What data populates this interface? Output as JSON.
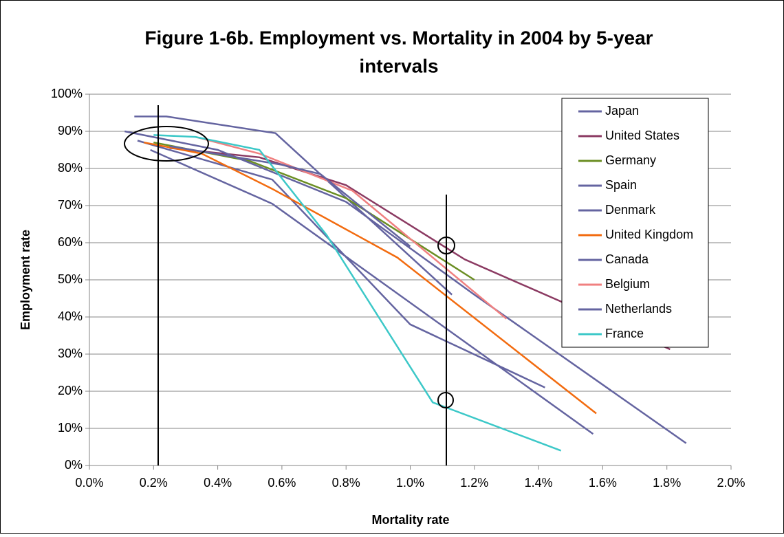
{
  "chart_data": {
    "type": "line",
    "title": [
      "Figure 1-6b. Employment vs. Mortality in 2004 by 5-year",
      "intervals"
    ],
    "x_label": "Mortality rate",
    "y_label": "Employment rate",
    "xlim": [
      0,
      2
    ],
    "ylim": [
      0,
      100
    ],
    "grid": true,
    "legend": "upper-right",
    "xticks": [
      {
        "value": 0,
        "label": "0.0%"
      },
      {
        "value": 0.2,
        "label": "0.2%"
      },
      {
        "value": 0.4,
        "label": "0.4%"
      },
      {
        "value": 0.6,
        "label": "0.6%"
      },
      {
        "value": 0.8,
        "label": "0.8%"
      },
      {
        "value": 1,
        "label": "1.0%"
      },
      {
        "value": 1.2,
        "label": "1.2%"
      },
      {
        "value": 1.4,
        "label": "1.4%"
      },
      {
        "value": 1.6,
        "label": "1.6%"
      },
      {
        "value": 1.8,
        "label": "1.8%"
      },
      {
        "value": 2,
        "label": "2.0%"
      }
    ],
    "yticks": [
      {
        "value": 0,
        "label": "0%"
      },
      {
        "value": 10,
        "label": "10%"
      },
      {
        "value": 20,
        "label": "20%"
      },
      {
        "value": 30,
        "label": "30%"
      },
      {
        "value": 40,
        "label": "40%"
      },
      {
        "value": 50,
        "label": "50%"
      },
      {
        "value": 60,
        "label": "60%"
      },
      {
        "value": 70,
        "label": "70%"
      },
      {
        "value": 80,
        "label": "80%"
      },
      {
        "value": 90,
        "label": "90%"
      },
      {
        "value": 100,
        "label": "100%"
      }
    ],
    "series": [
      {
        "name": "Japan",
        "color": "#6464a0",
        "x": [
          0.14,
          0.24,
          0.58,
          1.13
        ],
        "values": [
          94,
          94,
          89.5,
          46
        ]
      },
      {
        "name": "United States",
        "color": "#8b3a62",
        "x": [
          0.25,
          0.53,
          0.8,
          1.17,
          1.81
        ],
        "values": [
          85.5,
          83,
          75.5,
          55.5,
          31.3
        ]
      },
      {
        "name": "Germany",
        "color": "#6b8e23",
        "x": [
          0.2,
          0.5,
          0.8,
          1.2
        ],
        "values": [
          87,
          82,
          72,
          50
        ]
      },
      {
        "name": "Spain",
        "color": "#6464a0",
        "x": [
          0.15,
          0.57,
          1.0,
          1.42
        ],
        "values": [
          87.5,
          77,
          38,
          21
        ]
      },
      {
        "name": "Denmark",
        "color": "#6464a0",
        "x": [
          0.19,
          0.57,
          1.57
        ],
        "values": [
          85,
          70.5,
          8.5
        ]
      },
      {
        "name": "United Kingdom",
        "color": "#f26b0f",
        "x": [
          0.17,
          0.35,
          0.57,
          0.96,
          1.58
        ],
        "values": [
          87,
          84,
          74.5,
          56,
          14
        ]
      },
      {
        "name": "Canada",
        "color": "#6464a0",
        "x": [
          0.11,
          0.4,
          0.8,
          1.2,
          1.86
        ],
        "values": [
          90,
          85,
          71,
          46,
          6
        ]
      },
      {
        "name": "Belgium",
        "color": "#f08080",
        "x": [
          0.33,
          0.53,
          0.82,
          1.3
        ],
        "values": [
          88.5,
          84,
          74,
          39.5
        ]
      },
      {
        "name": "Netherlands",
        "color": "#6464a0",
        "x": [
          0.25,
          0.6,
          0.72,
          1.0
        ],
        "values": [
          86,
          81,
          78.5,
          59
        ]
      },
      {
        "name": "France",
        "color": "#3cc8c8",
        "x": [
          0.2,
          0.33,
          0.53,
          0.74,
          1.07,
          1.47
        ],
        "values": [
          89,
          88.5,
          85,
          62,
          17,
          4
        ]
      }
    ]
  }
}
